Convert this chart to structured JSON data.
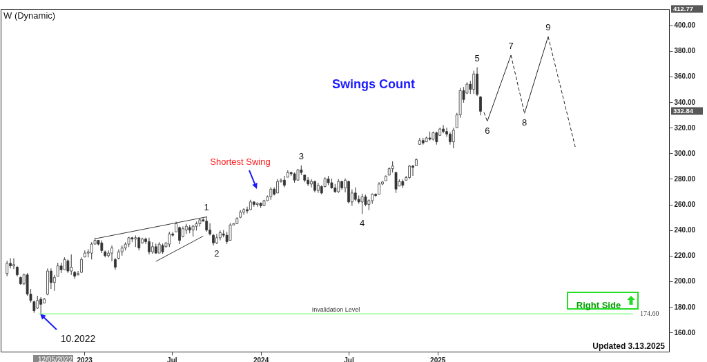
{
  "chart_data": {
    "type": "candlestick",
    "title": "W (Dynamic)",
    "x": [
      "2022-07-25",
      "2022-08-01",
      "2022-08-08",
      "2022-08-15",
      "2022-08-22",
      "2022-08-29",
      "2022-09-05",
      "2022-09-12",
      "2022-09-19",
      "2022-09-26",
      "2022-10-03",
      "2022-10-10",
      "2022-10-17",
      "2022-10-24",
      "2022-10-31",
      "2022-11-07",
      "2022-11-14",
      "2022-11-21",
      "2022-11-28",
      "2022-12-05",
      "2022-12-12",
      "2022-12-19",
      "2022-12-26",
      "2023-01-02",
      "2023-01-09",
      "2023-01-16",
      "2023-01-23",
      "2023-01-30",
      "2023-02-06",
      "2023-02-13",
      "2023-02-20",
      "2023-02-27",
      "2023-03-06",
      "2023-03-13",
      "2023-03-20",
      "2023-03-27",
      "2023-04-03",
      "2023-04-10",
      "2023-04-17",
      "2023-04-24",
      "2023-05-01",
      "2023-05-08",
      "2023-05-15",
      "2023-05-22",
      "2023-05-29",
      "2023-06-05",
      "2023-06-12",
      "2023-06-19",
      "2023-06-26",
      "2023-07-03",
      "2023-07-10",
      "2023-07-17",
      "2023-07-24",
      "2023-07-31",
      "2023-08-07",
      "2023-08-14",
      "2023-08-21",
      "2023-08-28",
      "2023-09-04",
      "2023-09-11",
      "2023-09-18",
      "2023-09-25",
      "2023-10-02",
      "2023-10-09",
      "2023-10-16",
      "2023-10-23",
      "2023-10-30",
      "2023-11-06",
      "2023-11-13",
      "2023-11-20",
      "2023-11-27",
      "2023-12-04",
      "2023-12-11",
      "2023-12-18",
      "2023-12-25",
      "2024-01-01",
      "2024-01-08",
      "2024-01-15",
      "2024-01-22",
      "2024-01-29",
      "2024-02-05",
      "2024-02-12",
      "2024-02-19",
      "2024-02-26",
      "2024-03-04",
      "2024-03-11",
      "2024-03-18",
      "2024-03-25",
      "2024-04-01",
      "2024-04-08",
      "2024-04-15",
      "2024-04-22",
      "2024-04-29",
      "2024-05-06",
      "2024-05-13",
      "2024-05-20",
      "2024-05-27",
      "2024-06-03",
      "2024-06-10",
      "2024-06-17",
      "2024-06-24",
      "2024-07-01",
      "2024-07-08",
      "2024-07-15",
      "2024-07-22",
      "2024-07-29",
      "2024-08-05",
      "2024-08-12",
      "2024-08-19",
      "2024-08-26",
      "2024-09-02",
      "2024-09-09",
      "2024-09-16",
      "2024-09-23",
      "2024-09-30",
      "2024-10-07",
      "2024-10-14",
      "2024-10-21",
      "2024-10-28",
      "2024-11-04",
      "2024-11-11",
      "2024-11-18",
      "2024-11-25",
      "2024-12-02",
      "2024-12-09",
      "2024-12-16",
      "2024-12-23",
      "2024-12-30",
      "2025-01-06",
      "2025-01-13",
      "2025-01-20",
      "2025-01-27",
      "2025-02-03",
      "2025-02-10",
      "2025-02-17",
      "2025-02-24",
      "2025-03-03",
      "2025-03-10",
      "2025-03-17",
      "2025-03-24",
      "2025-03-31"
    ],
    "ohlc": [
      [
        206,
        216,
        204,
        214
      ],
      [
        214,
        218,
        210,
        212
      ],
      [
        212,
        218,
        209.5,
        213
      ],
      [
        211,
        212,
        203.7,
        205
      ],
      [
        203,
        203.7,
        197.3,
        198
      ],
      [
        198,
        206,
        197,
        205
      ],
      [
        205,
        206.4,
        188.7,
        190
      ],
      [
        190,
        194,
        183.3,
        185
      ],
      [
        184,
        185,
        175.3,
        177
      ],
      [
        179,
        188.7,
        178.5,
        185
      ],
      [
        186,
        187.6,
        174.6,
        182
      ],
      [
        183,
        187,
        183,
        186
      ],
      [
        190,
        210,
        189,
        208
      ],
      [
        208,
        210,
        194,
        199
      ],
      [
        199,
        205,
        192.5,
        203
      ],
      [
        204,
        214.5,
        203.7,
        212
      ],
      [
        212,
        214.5,
        206.4,
        209
      ],
      [
        209,
        218.7,
        209,
        217
      ],
      [
        216,
        217,
        206.4,
        208
      ],
      [
        208,
        221,
        205,
        211
      ],
      [
        207,
        208,
        202,
        204
      ],
      [
        205,
        208,
        204.5,
        206
      ],
      [
        207,
        218.7,
        206.4,
        217
      ],
      [
        219,
        224,
        218.7,
        222
      ],
      [
        222,
        225,
        218.7,
        223
      ],
      [
        222,
        230.5,
        217,
        229
      ],
      [
        229,
        234,
        229,
        232
      ],
      [
        232,
        232,
        228,
        229
      ],
      [
        230,
        232,
        222,
        224
      ],
      [
        223,
        224,
        218.7,
        220
      ],
      [
        220,
        224,
        218.7,
        222
      ],
      [
        222,
        228,
        215.6,
        226
      ],
      [
        217,
        218,
        209,
        211
      ],
      [
        218,
        225,
        217,
        223
      ],
      [
        223,
        228,
        220,
        226
      ],
      [
        226,
        230.5,
        224,
        229
      ],
      [
        229,
        234.7,
        226.7,
        234
      ],
      [
        234,
        234.7,
        230.5,
        233
      ],
      [
        233,
        235.8,
        226.7,
        234
      ],
      [
        234,
        234.7,
        224,
        226
      ],
      [
        230,
        234,
        229.5,
        233
      ],
      [
        233,
        234,
        229,
        231
      ],
      [
        231,
        234,
        221,
        223
      ],
      [
        223,
        230.5,
        221.5,
        227
      ],
      [
        227,
        229.5,
        221.5,
        222
      ],
      [
        222,
        230.5,
        222,
        229
      ],
      [
        228,
        229.5,
        221.5,
        223
      ],
      [
        227,
        230.5,
        226.3,
        230
      ],
      [
        229,
        238.6,
        226.8,
        237
      ],
      [
        237,
        238.6,
        234.9,
        236
      ],
      [
        238.6,
        246.6,
        238.6,
        245
      ],
      [
        242,
        242.8,
        229,
        232
      ],
      [
        235,
        242.8,
        234.3,
        241
      ],
      [
        240,
        245,
        237,
        243
      ],
      [
        242,
        244,
        237.6,
        240
      ],
      [
        240,
        244,
        235,
        243
      ],
      [
        243,
        246.6,
        239.6,
        245
      ],
      [
        245,
        249.2,
        242.8,
        248
      ],
      [
        248,
        249.2,
        246.6,
        247
      ],
      [
        247,
        250.8,
        238.6,
        240
      ],
      [
        240,
        245.4,
        235.8,
        237
      ],
      [
        236,
        236.9,
        227.8,
        230
      ],
      [
        230,
        237,
        229,
        234
      ],
      [
        234,
        239.7,
        232,
        238
      ],
      [
        237,
        240,
        234.3,
        236
      ],
      [
        236,
        238.6,
        229,
        231
      ],
      [
        232,
        245.4,
        232,
        244
      ],
      [
        244,
        245.4,
        243.8,
        245
      ],
      [
        245,
        250,
        245,
        249
      ],
      [
        250,
        255.6,
        249.2,
        254
      ],
      [
        254,
        257,
        252,
        256
      ],
      [
        256,
        258.3,
        253,
        255
      ],
      [
        256,
        263.7,
        255.6,
        262
      ],
      [
        262,
        262.6,
        258.3,
        260
      ],
      [
        260,
        261.6,
        258.3,
        261
      ],
      [
        261,
        261.6,
        257.3,
        259
      ],
      [
        259,
        263.7,
        259,
        263
      ],
      [
        263,
        267,
        262.7,
        266
      ],
      [
        266,
        273.4,
        263.7,
        272
      ],
      [
        272,
        273.4,
        267,
        268
      ],
      [
        269,
        280,
        269,
        278
      ],
      [
        278,
        280.3,
        277,
        279
      ],
      [
        279,
        282.4,
        273.4,
        275
      ],
      [
        281.3,
        286.7,
        281.3,
        285
      ],
      [
        285,
        285.6,
        282.4,
        284
      ],
      [
        284,
        285,
        277,
        279
      ],
      [
        279,
        287.8,
        278.6,
        287
      ],
      [
        287,
        290.5,
        283,
        285
      ],
      [
        283,
        283,
        277.4,
        279
      ],
      [
        279,
        281.3,
        274.4,
        276
      ],
      [
        276,
        279.8,
        273.4,
        278
      ],
      [
        278,
        278.6,
        269.5,
        271
      ],
      [
        271,
        277,
        269,
        275
      ],
      [
        274,
        275,
        268,
        269
      ],
      [
        274,
        281.3,
        273.4,
        280
      ],
      [
        280,
        282.4,
        275,
        277
      ],
      [
        277,
        280.3,
        272.3,
        273
      ],
      [
        273,
        276,
        269,
        270
      ],
      [
        270,
        279.8,
        269,
        278
      ],
      [
        278,
        278.6,
        271.5,
        273
      ],
      [
        273,
        280.3,
        269.5,
        279
      ],
      [
        278,
        278.6,
        260.9,
        262
      ],
      [
        262,
        271.8,
        259,
        269
      ],
      [
        269,
        273.4,
        262.6,
        264
      ],
      [
        264,
        267,
        260.5,
        262
      ],
      [
        262,
        268.5,
        252.5,
        266
      ],
      [
        266,
        267.7,
        258.6,
        260
      ],
      [
        260,
        264,
        255.6,
        263
      ],
      [
        263,
        268.7,
        260.5,
        268
      ],
      [
        268,
        268.7,
        266,
        267
      ],
      [
        268,
        277.4,
        267.7,
        276
      ],
      [
        276,
        278.4,
        275.2,
        277.6
      ],
      [
        278.6,
        282.8,
        278.6,
        282
      ],
      [
        283,
        289,
        282.8,
        288
      ],
      [
        288,
        293.7,
        285,
        290
      ],
      [
        285,
        285.5,
        269,
        272
      ],
      [
        274.4,
        279.6,
        274.4,
        278
      ],
      [
        278,
        279.6,
        273,
        275
      ],
      [
        279,
        282.4,
        278.6,
        281
      ],
      [
        281,
        291,
        280,
        290
      ],
      [
        290,
        291,
        282.4,
        289
      ],
      [
        290.3,
        296,
        290.3,
        295
      ],
      [
        307,
        312,
        306.7,
        310
      ],
      [
        310,
        312,
        306.7,
        308
      ],
      [
        309,
        313,
        308.8,
        312
      ],
      [
        312,
        317,
        310,
        311
      ],
      [
        311,
        317,
        310,
        316
      ],
      [
        316,
        317,
        306.7,
        309
      ],
      [
        314,
        320,
        314,
        319
      ],
      [
        319,
        322,
        315.6,
        317
      ],
      [
        317,
        320,
        313,
        315
      ],
      [
        315,
        316.6,
        306.7,
        309
      ],
      [
        309,
        320,
        304,
        318
      ],
      [
        320,
        331.6,
        320,
        330
      ],
      [
        330,
        351,
        327.8,
        349
      ],
      [
        349,
        351.8,
        339.5,
        342
      ],
      [
        347,
        355.5,
        346.4,
        354
      ],
      [
        354,
        356.6,
        346.4,
        350
      ],
      [
        350,
        364.6,
        346.4,
        362
      ],
      [
        362,
        367.2,
        344.7,
        346
      ],
      [
        344,
        344.7,
        329.6,
        332.84
      ]
    ],
    "series": [
      {
        "type": "line",
        "color": "#333333",
        "line_style": "solid",
        "x": [
          "2023-01-23",
          "2023-09-11"
        ],
        "values": [
          233.2,
          250.3
        ]
      },
      {
        "type": "line",
        "color": "#333333",
        "line_style": "solid",
        "x": [
          "2023-05-29",
          "2023-09-04"
        ],
        "values": [
          215.5,
          235.3
        ]
      },
      {
        "type": "line",
        "color": "#222222",
        "line_style": "dashed",
        "x": [
          "2025-04-07",
          "2025-04-14"
        ],
        "values": [
          332,
          325
        ]
      },
      {
        "type": "line",
        "color": "#222222",
        "line_style": "solid",
        "x": [
          "2025-04-14",
          "2025-06-02"
        ],
        "values": [
          325,
          376.7
        ]
      },
      {
        "type": "line",
        "color": "#222222",
        "line_style": "dashed",
        "x": [
          "2025-06-02",
          "2025-06-30"
        ],
        "values": [
          376.7,
          331.2
        ]
      },
      {
        "type": "line",
        "color": "#222222",
        "line_style": "solid",
        "x": [
          "2025-06-30",
          "2025-08-18"
        ],
        "values": [
          331.2,
          391.2
        ]
      },
      {
        "type": "line",
        "color": "#222222",
        "line_style": "dashed",
        "x": [
          "2025-08-18",
          "2025-10-13"
        ],
        "values": [
          391.2,
          305
        ]
      }
    ],
    "xlim": [
      "2022-07-19",
      "2026-04-18"
    ],
    "xticks": [
      {
        "value": "2023-01-01",
        "label": "2023"
      },
      {
        "value": "2023-07-01",
        "label": "Jul"
      },
      {
        "value": "2024-01-01",
        "label": "2024"
      },
      {
        "value": "2024-07-01",
        "label": "Jul"
      },
      {
        "value": "2025-01-01",
        "label": "2025"
      }
    ],
    "ylim": [
      145,
      412.77
    ],
    "yticks": [
      {
        "value": 160,
        "label": "160.00"
      },
      {
        "value": 180,
        "label": "180.00"
      },
      {
        "value": 200,
        "label": "200.00"
      },
      {
        "value": 220,
        "label": "220.00"
      },
      {
        "value": 240,
        "label": "240.00"
      },
      {
        "value": 260,
        "label": "260.00"
      },
      {
        "value": 280,
        "label": "280.00"
      },
      {
        "value": 300,
        "label": "300.00"
      },
      {
        "value": 320,
        "label": "320.00"
      },
      {
        "value": 340,
        "label": "340.00"
      },
      {
        "value": 360,
        "label": "360.00"
      },
      {
        "value": 380,
        "label": "380.00"
      },
      {
        "value": 400,
        "label": "400.00"
      }
    ],
    "ref_lines": [
      {
        "axis": "y",
        "value": 174.6,
        "label": "Invalidation Level",
        "color": "#80ff80"
      }
    ],
    "annotations": [
      "Swings Count",
      "Right Side",
      "Updated 3.13.2025",
      "174.60",
      "Shortest Swing",
      "10.2022",
      "412.77",
      "332.84",
      "12/05/2022",
      {
        "text": "1",
        "x": "2023-09-11",
        "y": 250.8
      },
      {
        "text": "2",
        "x": "2023-10-02",
        "y": 229
      },
      {
        "text": "3",
        "x": "2024-03-25",
        "y": 290.5
      },
      {
        "text": "4",
        "x": "2024-07-29",
        "y": 252.5
      },
      {
        "text": "5",
        "x": "2025-03-24",
        "y": 367.2
      },
      {
        "text": "6",
        "x": "2025-04-14",
        "y": 325
      },
      {
        "text": "7",
        "x": "2025-06-02",
        "y": 376.7
      },
      {
        "text": "8",
        "x": "2025-06-30",
        "y": 331.2
      },
      {
        "text": "9",
        "x": "2025-08-18",
        "y": 391.2
      }
    ]
  }
}
